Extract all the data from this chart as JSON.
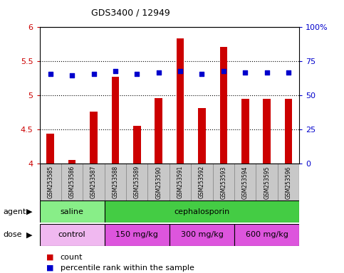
{
  "title": "GDS3400 / 12949",
  "samples": [
    "GSM253585",
    "GSM253586",
    "GSM253587",
    "GSM253588",
    "GSM253589",
    "GSM253590",
    "GSM253591",
    "GSM253592",
    "GSM253593",
    "GSM253594",
    "GSM253595",
    "GSM253596"
  ],
  "counts": [
    4.44,
    4.06,
    4.76,
    5.28,
    4.56,
    4.96,
    5.84,
    4.82,
    5.71,
    4.95,
    4.95,
    4.95
  ],
  "percentiles": [
    66,
    65,
    66,
    68,
    66,
    67,
    68,
    66,
    68,
    67,
    67,
    67
  ],
  "ylim_left": [
    4.0,
    6.0
  ],
  "ylim_right": [
    0,
    100
  ],
  "yticks_left": [
    4.0,
    4.5,
    5.0,
    5.5,
    6.0
  ],
  "yticks_right": [
    0,
    25,
    50,
    75,
    100
  ],
  "ytick_labels_left": [
    "4",
    "4.5",
    "5",
    "5.5",
    "6"
  ],
  "ytick_labels_right": [
    "0",
    "25",
    "50",
    "75",
    "100%"
  ],
  "bar_color": "#cc0000",
  "dot_color": "#0000cc",
  "bar_width": 0.35,
  "agent_groups": [
    {
      "label": "saline",
      "start": 0,
      "end": 3,
      "color": "#88ee88"
    },
    {
      "label": "cephalosporin",
      "start": 3,
      "end": 12,
      "color": "#44cc44"
    }
  ],
  "dose_groups": [
    {
      "label": "control",
      "start": 0,
      "end": 3,
      "color": "#f0b8f0"
    },
    {
      "label": "150 mg/kg",
      "start": 3,
      "end": 6,
      "color": "#dd55dd"
    },
    {
      "label": "300 mg/kg",
      "start": 6,
      "end": 9,
      "color": "#dd55dd"
    },
    {
      "label": "600 mg/kg",
      "start": 9,
      "end": 12,
      "color": "#dd55dd"
    }
  ],
  "legend_count_color": "#cc0000",
  "legend_dot_color": "#0000cc",
  "tick_label_color_left": "#cc0000",
  "tick_label_color_right": "#0000cc",
  "plot_bg_color": "#ffffff",
  "hgrid_values": [
    4.5,
    5.0,
    5.5
  ],
  "xlabels_bg": "#c8c8c8"
}
